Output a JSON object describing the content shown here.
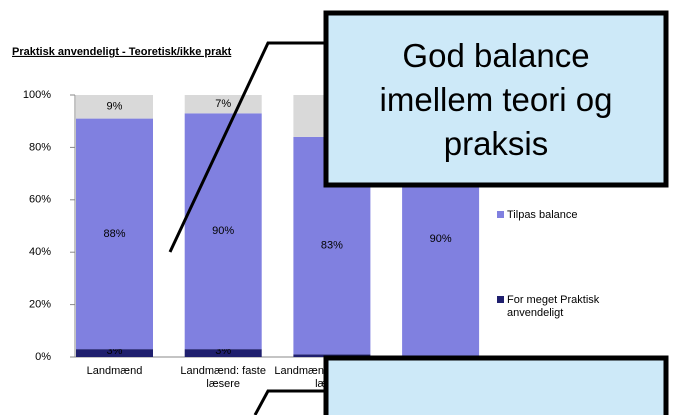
{
  "chart_data": {
    "type": "stacked_bar",
    "title": "Praktisk anvendeligt - Teoretisk/ikke prakt",
    "categories": [
      "Landmænd",
      "Landmænd: faste læsere",
      "Landmænd: sporadiske læsere",
      null
    ],
    "series": [
      {
        "name": "For meget Praktisk anvendeligt",
        "color": "#1f1f6e",
        "values": [
          3,
          3,
          1,
          0
        ],
        "value_labels": [
          "3%",
          "3%",
          null,
          null
        ]
      },
      {
        "name": "Tilpas balance",
        "color": "#8080e0",
        "values": [
          88,
          90,
          83,
          90
        ],
        "value_labels": [
          "88%",
          "90%",
          "83%",
          "90%"
        ]
      },
      {
        "color": "#d9d9d9",
        "values": [
          9,
          7,
          16,
          10
        ],
        "value_labels": [
          "9%",
          "7%",
          null,
          null
        ]
      }
    ],
    "ylim": [
      0,
      100
    ],
    "yticks": [
      {
        "value": 0,
        "label": "0%"
      },
      {
        "value": 20,
        "label": "20%"
      },
      {
        "value": 40,
        "label": "40%"
      },
      {
        "value": 60,
        "label": "60%"
      },
      {
        "value": 80,
        "label": "80%"
      },
      {
        "value": 100,
        "label": "100%"
      }
    ]
  },
  "callouts": [
    {
      "text": "God balance imellem teori og praksis"
    }
  ]
}
